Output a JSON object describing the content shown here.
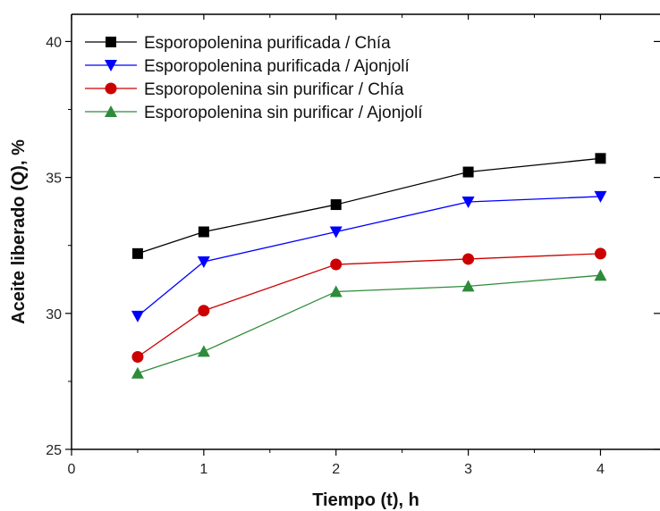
{
  "chart_data": {
    "type": "line",
    "xlabel": "Tiempo (t), h",
    "ylabel": "Aceite liberado (Q), %",
    "xlim": [
      0,
      4.45
    ],
    "ylim": [
      25,
      41
    ],
    "xticks": [
      0,
      1,
      2,
      3,
      4
    ],
    "yticks": [
      25,
      30,
      35,
      40
    ],
    "x": [
      0.5,
      1,
      2,
      3,
      4
    ],
    "grid": false,
    "legend_position": "top-left",
    "series": [
      {
        "name": "Esporopolenina purificada / Chía",
        "marker": "square",
        "color": "#000000",
        "values": [
          32.2,
          33.0,
          34.0,
          35.2,
          35.7
        ]
      },
      {
        "name": "Esporopolenina purificada / Ajonjolí",
        "marker": "triangle-down",
        "color": "#0000ff",
        "values": [
          29.9,
          31.9,
          33.0,
          34.1,
          34.3
        ]
      },
      {
        "name": "Esporopolenina sin purificar / Chía",
        "marker": "circle",
        "color": "#cc0000",
        "values": [
          28.4,
          30.1,
          31.8,
          32.0,
          32.2
        ]
      },
      {
        "name": "Esporopolenina sin purificar / Ajonjolí",
        "marker": "triangle-up",
        "color": "#2e8b3a",
        "values": [
          27.8,
          28.6,
          30.8,
          31.0,
          31.4
        ]
      }
    ]
  }
}
